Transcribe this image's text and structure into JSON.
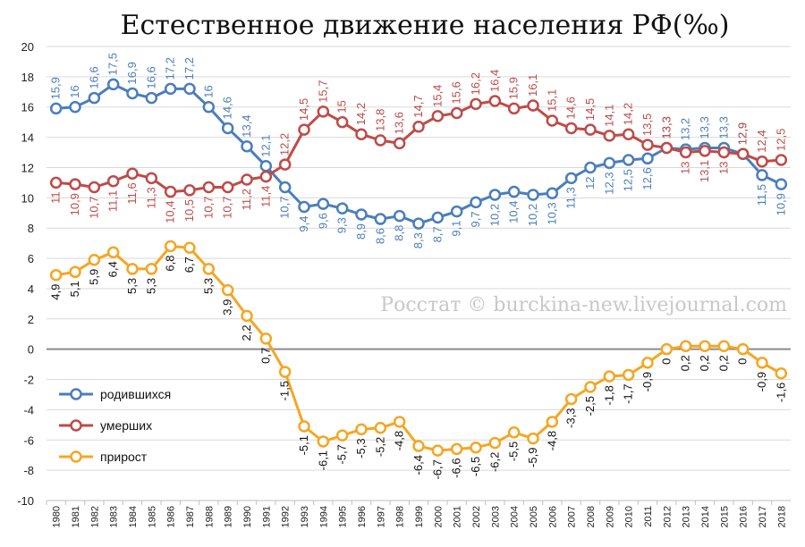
{
  "chart_data": {
    "type": "line",
    "title": "Естественное движение населения РФ(‰)",
    "watermark": "Росстат © burckina-new.livejournal.com",
    "ylim": [
      -10,
      20
    ],
    "yticks": [
      "-10",
      "-8",
      "-6",
      "-4",
      "-2",
      "0",
      "2",
      "4",
      "6",
      "8",
      "10",
      "12",
      "14",
      "16",
      "18",
      "20"
    ],
    "grid": "horizontal",
    "legend_position": "left",
    "categories": [
      "1980",
      "1981",
      "1982",
      "1983",
      "1984",
      "1985",
      "1986",
      "1987",
      "1988",
      "1989",
      "1990",
      "1991",
      "1992",
      "1993",
      "1994",
      "1995",
      "1996",
      "1997",
      "1998",
      "1999",
      "2000",
      "2001",
      "2002",
      "2003",
      "2004",
      "2005",
      "2006",
      "2007",
      "2008",
      "2009",
      "2010",
      "2011",
      "2012",
      "2013",
      "2014",
      "2015",
      "2016",
      "2017",
      "2018"
    ],
    "series": [
      {
        "name": "родившихся",
        "color": "#4a7ebb",
        "values": [
          15.9,
          16,
          16.6,
          17.5,
          16.9,
          16.6,
          17.2,
          17.2,
          16,
          14.6,
          13.4,
          12.1,
          10.7,
          9.4,
          9.6,
          9.3,
          8.9,
          8.6,
          8.8,
          8.3,
          8.7,
          9.1,
          9.7,
          10.2,
          10.4,
          10.2,
          10.3,
          11.3,
          12,
          12.3,
          12.5,
          12.6,
          13.3,
          13.2,
          13.3,
          13.3,
          12.9,
          11.5,
          10.9
        ],
        "labels": [
          "15,9",
          "16",
          "16,6",
          "17,5",
          "16,9",
          "16,6",
          "17,2",
          "17,2",
          "16",
          "14,6",
          "13,4",
          "12,1",
          "10,7",
          "9,4",
          "9,6",
          "9,3",
          "8,9",
          "8,6",
          "8,8",
          "8,3",
          "8,7",
          "9,1",
          "9,7",
          "10,2",
          "10,4",
          "10,2",
          "10,3",
          "11,3",
          "12",
          "12,3",
          "12,5",
          "12,6",
          "13,3",
          "13,2",
          "13,3",
          "13,3",
          "12,9",
          "11,5",
          "10,9"
        ]
      },
      {
        "name": "умерших",
        "color": "#be4b48",
        "values": [
          11,
          10.9,
          10.7,
          11.1,
          11.6,
          11.3,
          10.4,
          10.5,
          10.7,
          10.7,
          11.2,
          11.4,
          12.2,
          14.5,
          15.7,
          15,
          14.2,
          13.8,
          13.6,
          14.7,
          15.4,
          15.6,
          16.2,
          16.4,
          15.9,
          16.1,
          15.1,
          14.6,
          14.5,
          14.1,
          14.2,
          13.5,
          13.3,
          13,
          13.1,
          13,
          12.9,
          12.4,
          12.5
        ],
        "labels": [
          "11",
          "10,9",
          "10,7",
          "11,1",
          "11,6",
          "11,3",
          "10,4",
          "10,5",
          "10,7",
          "10,7",
          "11,2",
          "11,4",
          "12,2",
          "14,5",
          "15,7",
          "15",
          "14,2",
          "13,8",
          "13,6",
          "14,7",
          "15,4",
          "15,6",
          "16,2",
          "16,4",
          "15,9",
          "16,1",
          "15,1",
          "14,6",
          "14,5",
          "14,1",
          "14,2",
          "13,5",
          "13,3",
          "13",
          "13,1",
          "13",
          "12,9",
          "12,4",
          "12,5"
        ]
      },
      {
        "name": "прирост",
        "color": "#f5a623",
        "values": [
          4.9,
          5.1,
          5.9,
          6.4,
          5.3,
          5.3,
          6.8,
          6.7,
          5.3,
          3.9,
          2.2,
          0.7,
          -1.5,
          -5.1,
          -6.1,
          -5.7,
          -5.3,
          -5.2,
          -4.8,
          -6.4,
          -6.7,
          -6.6,
          -6.5,
          -6.2,
          -5.5,
          -5.9,
          -4.8,
          -3.3,
          -2.5,
          -1.8,
          -1.7,
          -0.9,
          0,
          0.2,
          0.2,
          0.2,
          0,
          -0.9,
          -1.6
        ],
        "labels": [
          "4,9",
          "5,1",
          "5,9",
          "6,4",
          "5,3",
          "5,3",
          "6,8",
          "6,7",
          "5,3",
          "3,9",
          "2,2",
          "0,7",
          "-1,5",
          "-5,1",
          "-6,1",
          "-5,7",
          "-5,3",
          "-5,2",
          "-4,8",
          "-6,4",
          "-6,7",
          "-6,6",
          "-6,5",
          "-6,2",
          "-5,5",
          "-5,9",
          "-4,8",
          "-3,3",
          "-2,5",
          "-1,8",
          "-1,7",
          "-0,9",
          "0",
          "0,2",
          "0,2",
          "0,2",
          "0",
          "-0,9",
          "-1,6"
        ]
      }
    ]
  }
}
